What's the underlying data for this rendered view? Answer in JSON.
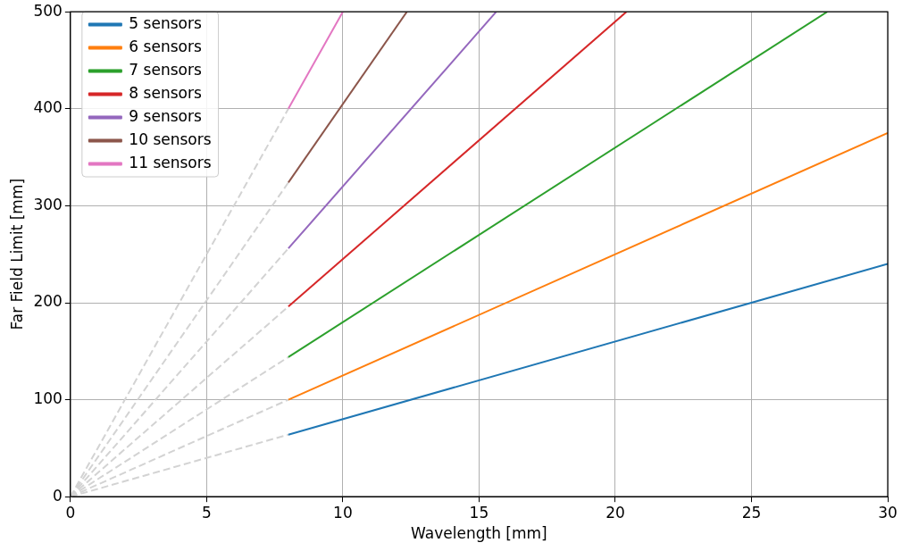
{
  "chart_data": {
    "type": "line",
    "xlabel": "Wavelength [mm]",
    "ylabel": "Far Field Limit [mm]",
    "xlim": [
      0,
      30
    ],
    "xticks": [
      0,
      5,
      10,
      15,
      20,
      25,
      30
    ],
    "ylim": [
      0,
      500
    ],
    "yticks": [
      0,
      100,
      200,
      300,
      400,
      500
    ],
    "grid": true,
    "legend": "top left",
    "marker": "none",
    "line_style": "solid",
    "series": [
      {
        "name": "5 sensors",
        "color": "#1f77b4",
        "x": [
          8,
          30
        ],
        "values": [
          64,
          240
        ]
      },
      {
        "name": "6 sensors",
        "color": "#ff7f0e",
        "x": [
          8,
          30
        ],
        "values": [
          100,
          375
        ]
      },
      {
        "name": "7 sensors",
        "color": "#2ca02c",
        "x": [
          8,
          27.78
        ],
        "values": [
          144,
          500
        ]
      },
      {
        "name": "8 sensors",
        "color": "#d62728",
        "x": [
          8,
          20.41
        ],
        "values": [
          196,
          500
        ]
      },
      {
        "name": "9 sensors",
        "color": "#9467bd",
        "x": [
          8,
          15.63
        ],
        "values": [
          256,
          500
        ]
      },
      {
        "name": "10 sensors",
        "color": "#8c564b",
        "x": [
          8,
          12.35
        ],
        "values": [
          324,
          500
        ]
      },
      {
        "name": "11 sensors",
        "color": "#e377c2",
        "x": [
          8,
          10
        ],
        "values": [
          400,
          500
        ]
      },
      {
        "color": "#d3d3d3",
        "line_style": "dashed",
        "x": [
          0,
          8
        ],
        "values": [
          0,
          64
        ]
      },
      {
        "color": "#d3d3d3",
        "line_style": "dashed",
        "x": [
          0,
          8
        ],
        "values": [
          0,
          100
        ]
      },
      {
        "color": "#d3d3d3",
        "line_style": "dashed",
        "x": [
          0,
          8
        ],
        "values": [
          0,
          144
        ]
      },
      {
        "color": "#d3d3d3",
        "line_style": "dashed",
        "x": [
          0,
          8
        ],
        "values": [
          0,
          196
        ]
      },
      {
        "color": "#d3d3d3",
        "line_style": "dashed",
        "x": [
          0,
          8
        ],
        "values": [
          0,
          256
        ]
      },
      {
        "color": "#d3d3d3",
        "line_style": "dashed",
        "x": [
          0,
          8
        ],
        "values": [
          0,
          324
        ]
      },
      {
        "color": "#d3d3d3",
        "line_style": "dashed",
        "x": [
          0,
          8
        ],
        "values": [
          0,
          400
        ]
      }
    ]
  }
}
